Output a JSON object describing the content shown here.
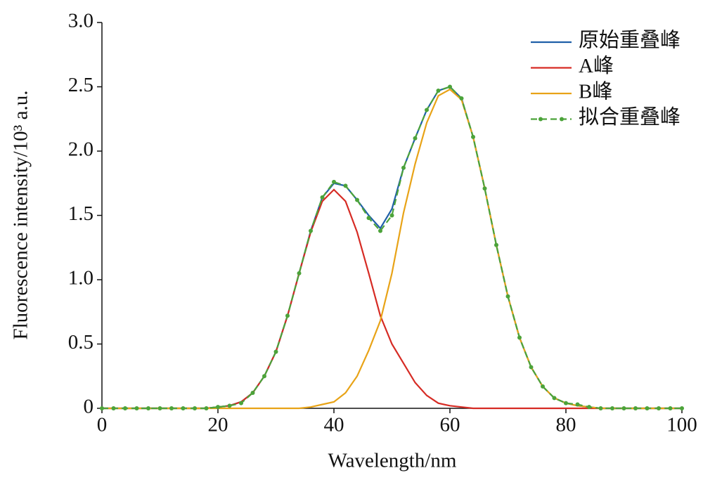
{
  "chart_data": {
    "type": "line",
    "xlabel": "Wavelength/nm",
    "ylabel": "Fluorescence intensity/10³ a.u.",
    "x": [
      0,
      2,
      4,
      6,
      8,
      10,
      12,
      14,
      16,
      18,
      20,
      22,
      24,
      26,
      28,
      30,
      32,
      34,
      36,
      38,
      40,
      42,
      44,
      46,
      48,
      50,
      52,
      54,
      56,
      58,
      60,
      62,
      64,
      66,
      68,
      70,
      72,
      74,
      76,
      78,
      80,
      82,
      84,
      86,
      88,
      90,
      92,
      94,
      96,
      98,
      100
    ],
    "series": [
      {
        "name": "原始重叠峰",
        "color": "#1f5fa8",
        "values": [
          0,
          0,
          0,
          0,
          0,
          0,
          0,
          0,
          0,
          0,
          0.01,
          0.02,
          0.05,
          0.12,
          0.25,
          0.44,
          0.72,
          1.05,
          1.38,
          1.64,
          1.75,
          1.73,
          1.62,
          1.5,
          1.4,
          1.55,
          1.87,
          2.1,
          2.32,
          2.47,
          2.5,
          2.41,
          2.11,
          1.71,
          1.27,
          0.87,
          0.55,
          0.32,
          0.17,
          0.08,
          0.04,
          0.02,
          0.01,
          0,
          0,
          0,
          0,
          0,
          0,
          0,
          0
        ]
      },
      {
        "name": "A峰",
        "color": "#d62b24",
        "values": [
          0,
          0,
          0,
          0,
          0,
          0,
          0,
          0,
          0,
          0,
          0.01,
          0.02,
          0.05,
          0.12,
          0.25,
          0.44,
          0.72,
          1.05,
          1.37,
          1.61,
          1.7,
          1.61,
          1.37,
          1.05,
          0.72,
          0.5,
          0.35,
          0.2,
          0.1,
          0.04,
          0.02,
          0.01,
          0,
          0,
          0,
          0,
          0,
          0,
          0,
          0,
          0,
          0,
          0,
          0,
          0,
          0,
          0,
          0,
          0,
          0,
          0
        ]
      },
      {
        "name": "B峰",
        "color": "#e8a317",
        "values": [
          0,
          0,
          0,
          0,
          0,
          0,
          0,
          0,
          0,
          0,
          0,
          0,
          0,
          0,
          0,
          0,
          0,
          0,
          0.01,
          0.03,
          0.05,
          0.12,
          0.25,
          0.45,
          0.68,
          1.05,
          1.52,
          1.9,
          2.22,
          2.43,
          2.48,
          2.4,
          2.11,
          1.71,
          1.27,
          0.87,
          0.55,
          0.32,
          0.17,
          0.08,
          0.04,
          0.02,
          0.01,
          0,
          0,
          0,
          0,
          0,
          0,
          0,
          0
        ]
      },
      {
        "name": "拟合重叠峰",
        "color": "#4ca33a",
        "dashed": true,
        "markers": true,
        "values": [
          0,
          0,
          0,
          0,
          0,
          0,
          0,
          0,
          0,
          0,
          0.01,
          0.02,
          0.04,
          0.12,
          0.25,
          0.44,
          0.72,
          1.05,
          1.38,
          1.64,
          1.76,
          1.73,
          1.62,
          1.48,
          1.38,
          1.5,
          1.87,
          2.1,
          2.32,
          2.47,
          2.5,
          2.41,
          2.11,
          1.71,
          1.27,
          0.87,
          0.55,
          0.32,
          0.17,
          0.08,
          0.04,
          0.03,
          0.01,
          0,
          0,
          0,
          0,
          0,
          0,
          0,
          0
        ]
      }
    ],
    "xlim": [
      0,
      100
    ],
    "xticks": [
      0,
      20,
      40,
      60,
      80,
      100
    ],
    "ylim": [
      0,
      3
    ],
    "yticks": [
      0,
      0.5,
      {
        "value": 1,
        "label": "1.0"
      },
      1.5,
      {
        "value": 2,
        "label": "2.0"
      },
      2.5,
      {
        "value": 3,
        "label": "3.0"
      }
    ],
    "legend": "upper right"
  }
}
